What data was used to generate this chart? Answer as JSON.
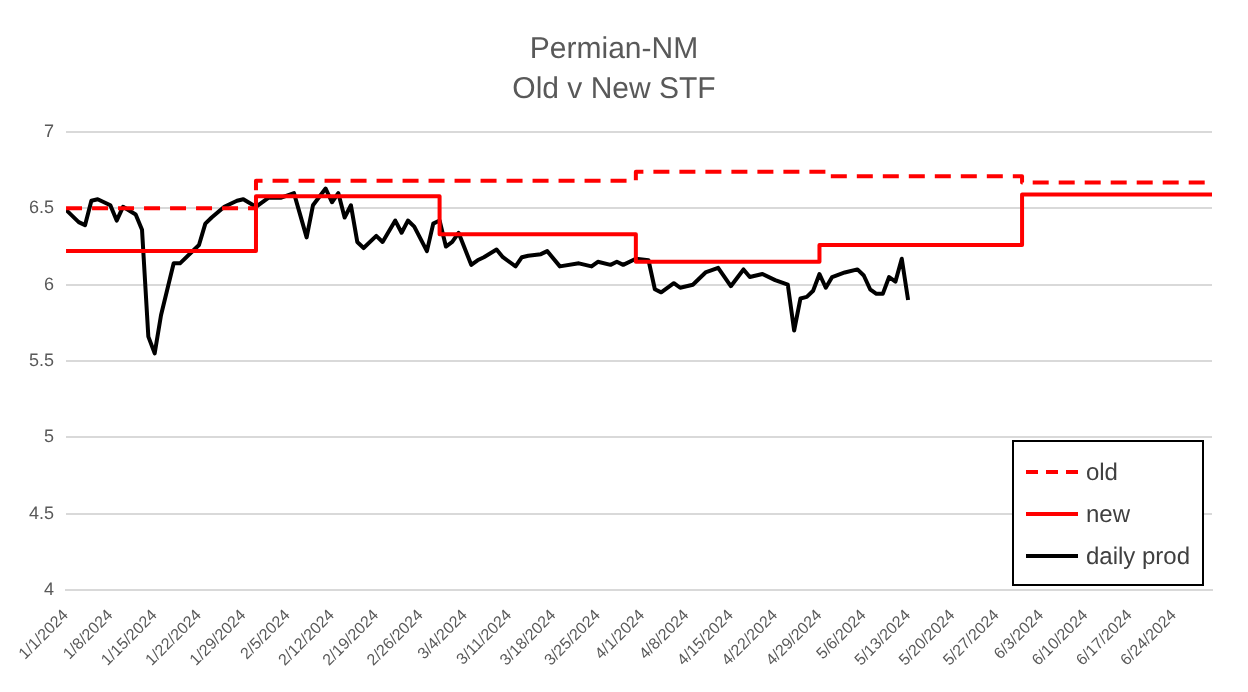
{
  "chart_data": {
    "type": "line",
    "title": "Permian-NM",
    "subtitle": "Old v New STF",
    "xlim": [
      "2024-01-01",
      "2024-06-30"
    ],
    "xticks": [
      {
        "value": "2024-01-01",
        "label": "1/1/2024"
      },
      {
        "value": "2024-01-08",
        "label": "1/8/2024"
      },
      {
        "value": "2024-01-15",
        "label": "1/15/2024"
      },
      {
        "value": "2024-01-22",
        "label": "1/22/2024"
      },
      {
        "value": "2024-01-29",
        "label": "1/29/2024"
      },
      {
        "value": "2024-02-05",
        "label": "2/5/2024"
      },
      {
        "value": "2024-02-12",
        "label": "2/12/2024"
      },
      {
        "value": "2024-02-19",
        "label": "2/19/2024"
      },
      {
        "value": "2024-02-26",
        "label": "2/26/2024"
      },
      {
        "value": "2024-03-04",
        "label": "3/4/2024"
      },
      {
        "value": "2024-03-11",
        "label": "3/11/2024"
      },
      {
        "value": "2024-03-18",
        "label": "3/18/2024"
      },
      {
        "value": "2024-03-25",
        "label": "3/25/2024"
      },
      {
        "value": "2024-04-01",
        "label": "4/1/2024"
      },
      {
        "value": "2024-04-08",
        "label": "4/8/2024"
      },
      {
        "value": "2024-04-15",
        "label": "4/15/2024"
      },
      {
        "value": "2024-04-22",
        "label": "4/22/2024"
      },
      {
        "value": "2024-04-29",
        "label": "4/29/2024"
      },
      {
        "value": "2024-05-06",
        "label": "5/6/2024"
      },
      {
        "value": "2024-05-13",
        "label": "5/13/2024"
      },
      {
        "value": "2024-05-20",
        "label": "5/20/2024"
      },
      {
        "value": "2024-05-27",
        "label": "5/27/2024"
      },
      {
        "value": "2024-06-03",
        "label": "6/3/2024"
      },
      {
        "value": "2024-06-10",
        "label": "6/10/2024"
      },
      {
        "value": "2024-06-17",
        "label": "6/17/2024"
      },
      {
        "value": "2024-06-24",
        "label": "6/24/2024"
      }
    ],
    "ylim": [
      4,
      7
    ],
    "yticks": [
      4,
      4.5,
      5,
      5.5,
      6,
      6.5,
      7
    ],
    "grid": "y",
    "legend": "bottom right",
    "marker": "none",
    "series": [
      {
        "name": "old",
        "type": "step",
        "color": "#ff0000",
        "line_style": "dashed",
        "x": [
          "2024-01-01",
          "2024-01-31",
          "2024-03-31",
          "2024-04-30",
          "2024-05-31",
          "2024-06-30"
        ],
        "values": [
          6.5,
          6.68,
          6.74,
          6.71,
          6.67,
          6.67
        ]
      },
      {
        "name": "new",
        "type": "step",
        "color": "#ff0000",
        "line_style": "solid",
        "x": [
          "2024-01-01",
          "2024-01-31",
          "2024-02-29",
          "2024-03-31",
          "2024-04-29",
          "2024-05-31",
          "2024-06-30"
        ],
        "values": [
          6.22,
          6.58,
          6.33,
          6.15,
          6.26,
          6.59,
          6.59
        ]
      },
      {
        "name": "daily prod",
        "type": "line",
        "color": "#000000",
        "line_style": "solid",
        "x": [
          "2024-01-01",
          "2024-01-03",
          "2024-01-04",
          "2024-01-05",
          "2024-01-06",
          "2024-01-08",
          "2024-01-09",
          "2024-01-10",
          "2024-01-12",
          "2024-01-13",
          "2024-01-14",
          "2024-01-15",
          "2024-01-16",
          "2024-01-18",
          "2024-01-19",
          "2024-01-22",
          "2024-01-23",
          "2024-01-24",
          "2024-01-26",
          "2024-01-28",
          "2024-01-29",
          "2024-01-31",
          "2024-02-02",
          "2024-02-04",
          "2024-02-06",
          "2024-02-08",
          "2024-02-09",
          "2024-02-11",
          "2024-02-12",
          "2024-02-13",
          "2024-02-14",
          "2024-02-15",
          "2024-02-16",
          "2024-02-17",
          "2024-02-19",
          "2024-02-20",
          "2024-02-22",
          "2024-02-23",
          "2024-02-24",
          "2024-02-25",
          "2024-02-27",
          "2024-02-28",
          "2024-02-29",
          "2024-03-01",
          "2024-03-02",
          "2024-03-03",
          "2024-03-05",
          "2024-03-06",
          "2024-03-07",
          "2024-03-09",
          "2024-03-10",
          "2024-03-12",
          "2024-03-13",
          "2024-03-14",
          "2024-03-16",
          "2024-03-17",
          "2024-03-19",
          "2024-03-22",
          "2024-03-24",
          "2024-03-25",
          "2024-03-27",
          "2024-03-28",
          "2024-03-29",
          "2024-03-31",
          "2024-04-02",
          "2024-04-03",
          "2024-04-04",
          "2024-04-06",
          "2024-04-07",
          "2024-04-09",
          "2024-04-11",
          "2024-04-13",
          "2024-04-15",
          "2024-04-17",
          "2024-04-18",
          "2024-04-20",
          "2024-04-22",
          "2024-04-24",
          "2024-04-25",
          "2024-04-26",
          "2024-04-27",
          "2024-04-28",
          "2024-04-29",
          "2024-04-30",
          "2024-05-01",
          "2024-05-03",
          "2024-05-05",
          "2024-05-06",
          "2024-05-07",
          "2024-05-08",
          "2024-05-09",
          "2024-05-10",
          "2024-05-11",
          "2024-05-12",
          "2024-05-13"
        ],
        "values": [
          6.49,
          6.41,
          6.39,
          6.55,
          6.56,
          6.52,
          6.42,
          6.51,
          6.46,
          6.36,
          5.66,
          5.55,
          5.8,
          6.14,
          6.14,
          6.26,
          6.4,
          6.44,
          6.51,
          6.55,
          6.56,
          6.51,
          6.57,
          6.57,
          6.6,
          6.31,
          6.52,
          6.63,
          6.54,
          6.6,
          6.44,
          6.52,
          6.28,
          6.24,
          6.32,
          6.28,
          6.42,
          6.34,
          6.42,
          6.38,
          6.22,
          6.4,
          6.42,
          6.25,
          6.28,
          6.34,
          6.13,
          6.16,
          6.18,
          6.23,
          6.18,
          6.12,
          6.18,
          6.19,
          6.2,
          6.22,
          6.12,
          6.14,
          6.12,
          6.15,
          6.13,
          6.15,
          6.13,
          6.17,
          6.16,
          5.97,
          5.95,
          6.01,
          5.98,
          6,
          6.08,
          6.11,
          5.99,
          6.1,
          6.05,
          6.07,
          6.03,
          6,
          5.7,
          5.91,
          5.92,
          5.96,
          6.07,
          5.98,
          6.05,
          6.08,
          6.1,
          6.06,
          5.97,
          5.94,
          5.94,
          6.05,
          6.02,
          6.17,
          5.9
        ]
      }
    ]
  }
}
